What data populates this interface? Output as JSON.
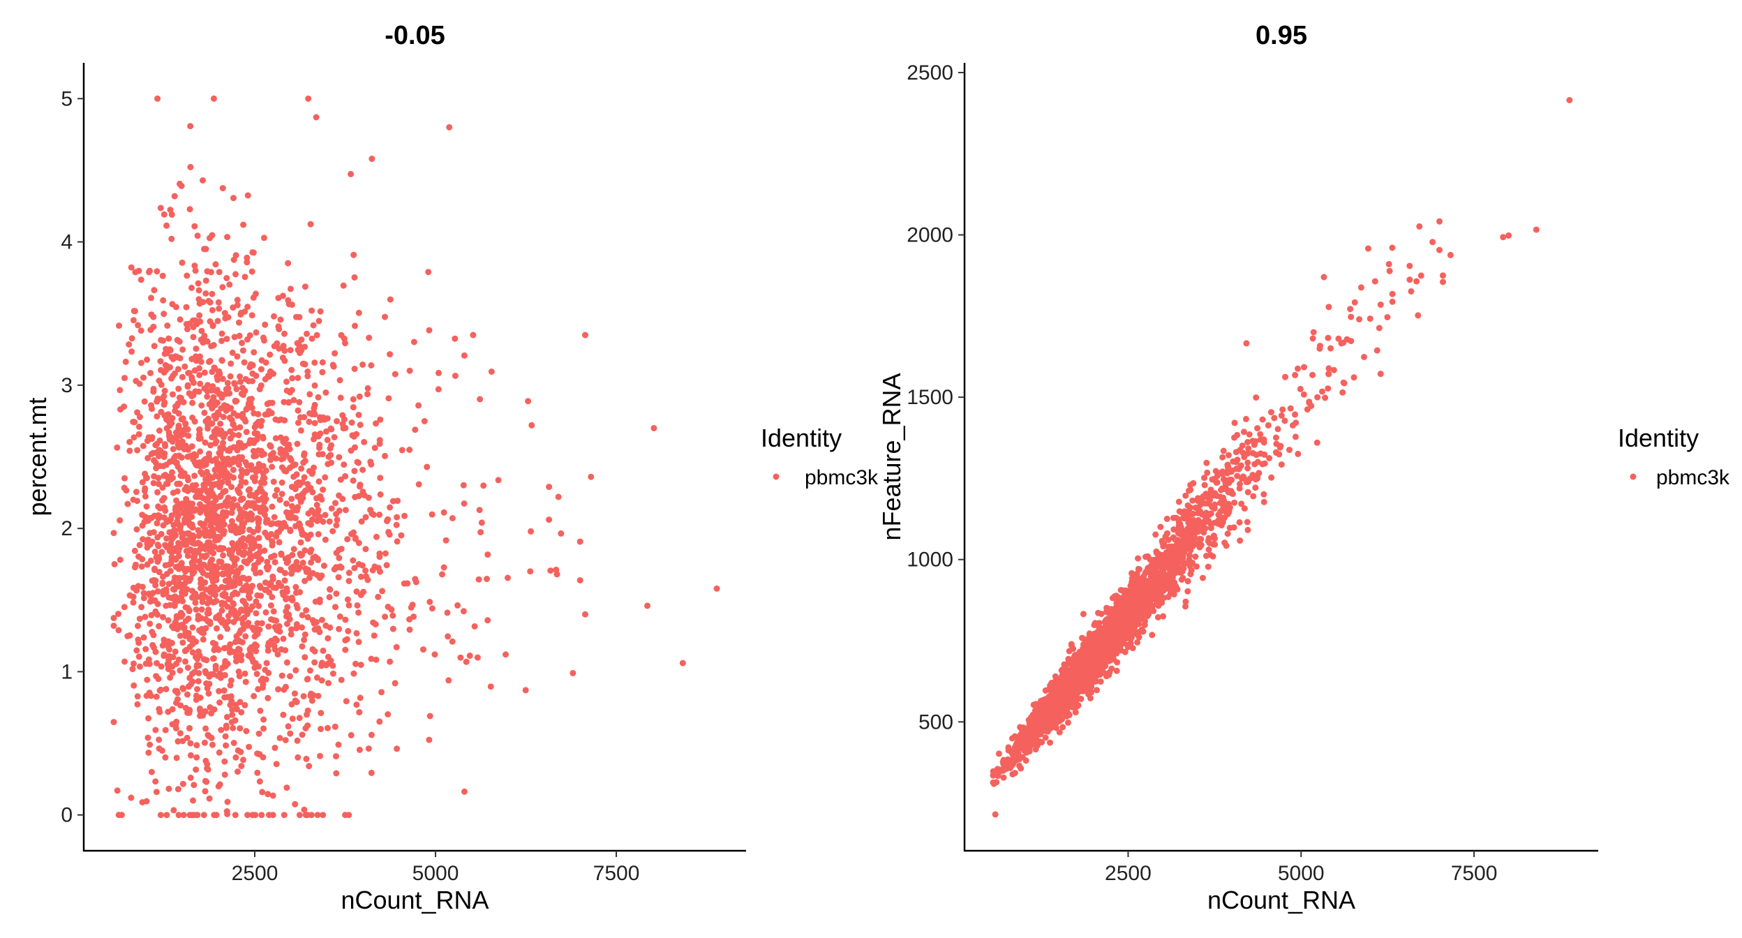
{
  "colors": {
    "point": "#F5615D",
    "axis": "#000000"
  },
  "chart_data": [
    {
      "type": "scatter",
      "title": "-0.05",
      "xlabel": "nCount_RNA",
      "ylabel": "percent.mt",
      "xlim": [
        135,
        9295
      ],
      "ylim": [
        -0.25,
        5.25
      ],
      "xticks": [
        2500,
        5000,
        7500
      ],
      "xtick_labels": [
        "2500",
        "5000",
        "7500"
      ],
      "yticks": [
        0,
        1,
        2,
        3,
        4,
        5
      ],
      "ytick_labels": [
        "0",
        "1",
        "2",
        "3",
        "4",
        "5"
      ],
      "grid": false,
      "legend": {
        "title": "Identity",
        "entries": [
          "pbmc3k"
        ],
        "placement": "right"
      },
      "bulk": {
        "n": 2500,
        "x_median": 2100,
        "x_log_sd": 0.42,
        "x_min": 550,
        "x_max": 7000,
        "y_mean": 2.0,
        "y_sd": 0.85,
        "y_min": 0,
        "y_max": 5
      },
      "points": [
        [
          8890,
          1.58
        ],
        [
          8420,
          1.06
        ],
        [
          8020,
          2.7
        ],
        [
          7930,
          1.46
        ],
        [
          7070,
          3.35
        ],
        [
          7070,
          1.4
        ],
        [
          6900,
          0.99
        ],
        [
          7150,
          2.36
        ],
        [
          6700,
          2.22
        ],
        [
          6570,
          2.29
        ],
        [
          6680,
          1.68
        ],
        [
          6330,
          2.72
        ],
        [
          6310,
          1.7
        ],
        [
          5970,
          1.12
        ],
        [
          5190,
          4.8
        ],
        [
          3240,
          5.0
        ],
        [
          3350,
          4.87
        ],
        [
          4120,
          4.58
        ],
        [
          4900,
          3.79
        ],
        [
          5520,
          3.35
        ],
        [
          600,
          0.17
        ],
        [
          790,
          0.12
        ],
        [
          620,
          0.0
        ],
        [
          660,
          0.0
        ],
        [
          2000,
          0.2
        ],
        [
          5640,
          2.04
        ]
      ]
    },
    {
      "type": "scatter",
      "title": "0.95",
      "xlabel": "nCount_RNA",
      "ylabel": "nFeature_RNA",
      "xlim": [
        135,
        9295
      ],
      "ylim": [
        103,
        2530
      ],
      "xticks": [
        2500,
        5000,
        7500
      ],
      "xtick_labels": [
        "2500",
        "5000",
        "7500"
      ],
      "yticks": [
        500,
        1000,
        1500,
        2000,
        2500
      ],
      "ytick_labels": [
        "500",
        "1000",
        "1500",
        "2000",
        "2500"
      ],
      "grid": false,
      "legend": {
        "title": "Identity",
        "entries": [
          "pbmc3k"
        ],
        "placement": "right"
      },
      "bulk": {
        "n": 2500,
        "x_median": 2100,
        "x_log_sd": 0.42,
        "x_min": 550,
        "x_max": 7000,
        "intercept": 180,
        "slope": 0.26,
        "rel_sd": 0.06
      },
      "points": [
        [
          8880,
          2415
        ],
        [
          8400,
          2016
        ],
        [
          8000,
          1998
        ],
        [
          7920,
          1993
        ],
        [
          6710,
          2026
        ],
        [
          6900,
          1978
        ],
        [
          7160,
          1938
        ],
        [
          7050,
          1875
        ],
        [
          7050,
          1855
        ],
        [
          5970,
          1958
        ],
        [
          6270,
          1910
        ],
        [
          6070,
          1857
        ],
        [
          6570,
          1862
        ],
        [
          6320,
          1818
        ],
        [
          6320,
          1794
        ],
        [
          5330,
          1870
        ],
        [
          5400,
          1778
        ],
        [
          6690,
          1752
        ],
        [
          5840,
          1740
        ],
        [
          6150,
          1785
        ],
        [
          6130,
          1713
        ],
        [
          6100,
          1644
        ],
        [
          5910,
          1624
        ],
        [
          6150,
          1572
        ],
        [
          580,
          215
        ],
        [
          4210,
          1666
        ]
      ]
    }
  ]
}
